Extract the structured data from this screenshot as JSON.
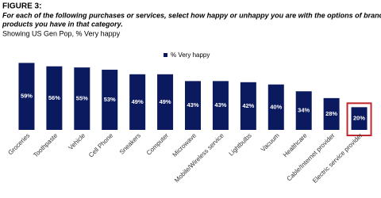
{
  "chart_data": {
    "type": "bar",
    "title": "FIGURE 3:",
    "subtitle": [
      "For each of the following purchases or services, select how happy or unhappy you are with the options of brands or",
      "products you have in that category."
    ],
    "note": "Showing US Gen Pop, % Very happy",
    "categories": [
      "Groceries",
      "Toothpaste",
      "Vehicle",
      "Cell Phone",
      "Sneakers",
      "Computer",
      "Microwave",
      "Mobile/Wireless service",
      "Lightbulbs",
      "Vacuum",
      "Healthcare",
      "Cable/Internet provider",
      "Electric service provider"
    ],
    "series": [
      {
        "name": "% Very happy",
        "color": "#0b1a5e",
        "values": [
          59,
          56,
          55,
          53,
          49,
          49,
          43,
          43,
          42,
          40,
          34,
          28,
          20
        ],
        "value_labels": [
          "59%",
          "56%",
          "55%",
          "53%",
          "49%",
          "49%",
          "43%",
          "43%",
          "42%",
          "40%",
          "34%",
          "28%",
          "20%"
        ]
      }
    ],
    "ylim": [
      0,
      60
    ],
    "highlight_index": 12,
    "highlight_color": "#c0262d"
  }
}
